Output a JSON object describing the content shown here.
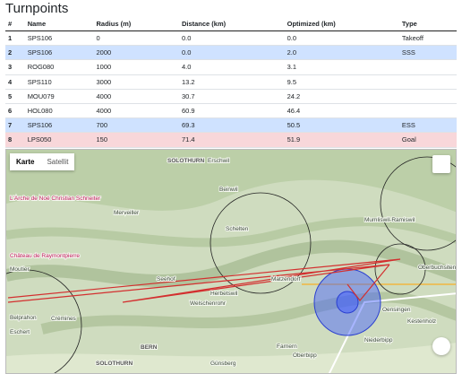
{
  "title": "Turnpoints",
  "table": {
    "headers": [
      "#",
      "Name",
      "Radius (m)",
      "Distance (km)",
      "Optimized (km)",
      "Type"
    ],
    "rows": [
      [
        "1",
        "SPS106",
        "0",
        "0.0",
        "0.0",
        "Takeoff"
      ],
      [
        "2",
        "SPS106",
        "2000",
        "0.0",
        "2.0",
        "SSS"
      ],
      [
        "3",
        "ROG080",
        "1000",
        "4.0",
        "3.1"
      ],
      [
        "4",
        "SPS110",
        "3000",
        "13.2",
        "9.5"
      ],
      [
        "5",
        "MOU079",
        "4000",
        "30.7",
        "24.2"
      ],
      [
        "6",
        "HOL080",
        "4000",
        "60.9",
        "46.4"
      ],
      [
        "7",
        "SPS106",
        "700",
        "69.3",
        "50.5",
        "ESS"
      ],
      [
        "8",
        "LPS050",
        "150",
        "71.4",
        "51.9",
        "Goal"
      ]
    ]
  },
  "map": {
    "buttons": [
      "Karte",
      "Satellit"
    ],
    "labels": [
      "SOLOTHURN",
      "Erschwil",
      "Beinwil",
      "Merveiller",
      "Schelten",
      "Mumliswil-Ramiswil",
      "L'Arche de Noé Christian Schneiter",
      "Château de Raymontpierre",
      "Moutier",
      "Seehof",
      "Herbetswil",
      "Matzendorf",
      "Welschenrohr",
      "Belprahon",
      "Crémines",
      "Eschert",
      "Oensingen",
      "Kestenholz",
      "Niederbipp",
      "Farnern",
      "Günsberg",
      "Oberbipp",
      "Oberbuchsiten",
      "BERN",
      "SOLOTHURN"
    ]
  }
}
